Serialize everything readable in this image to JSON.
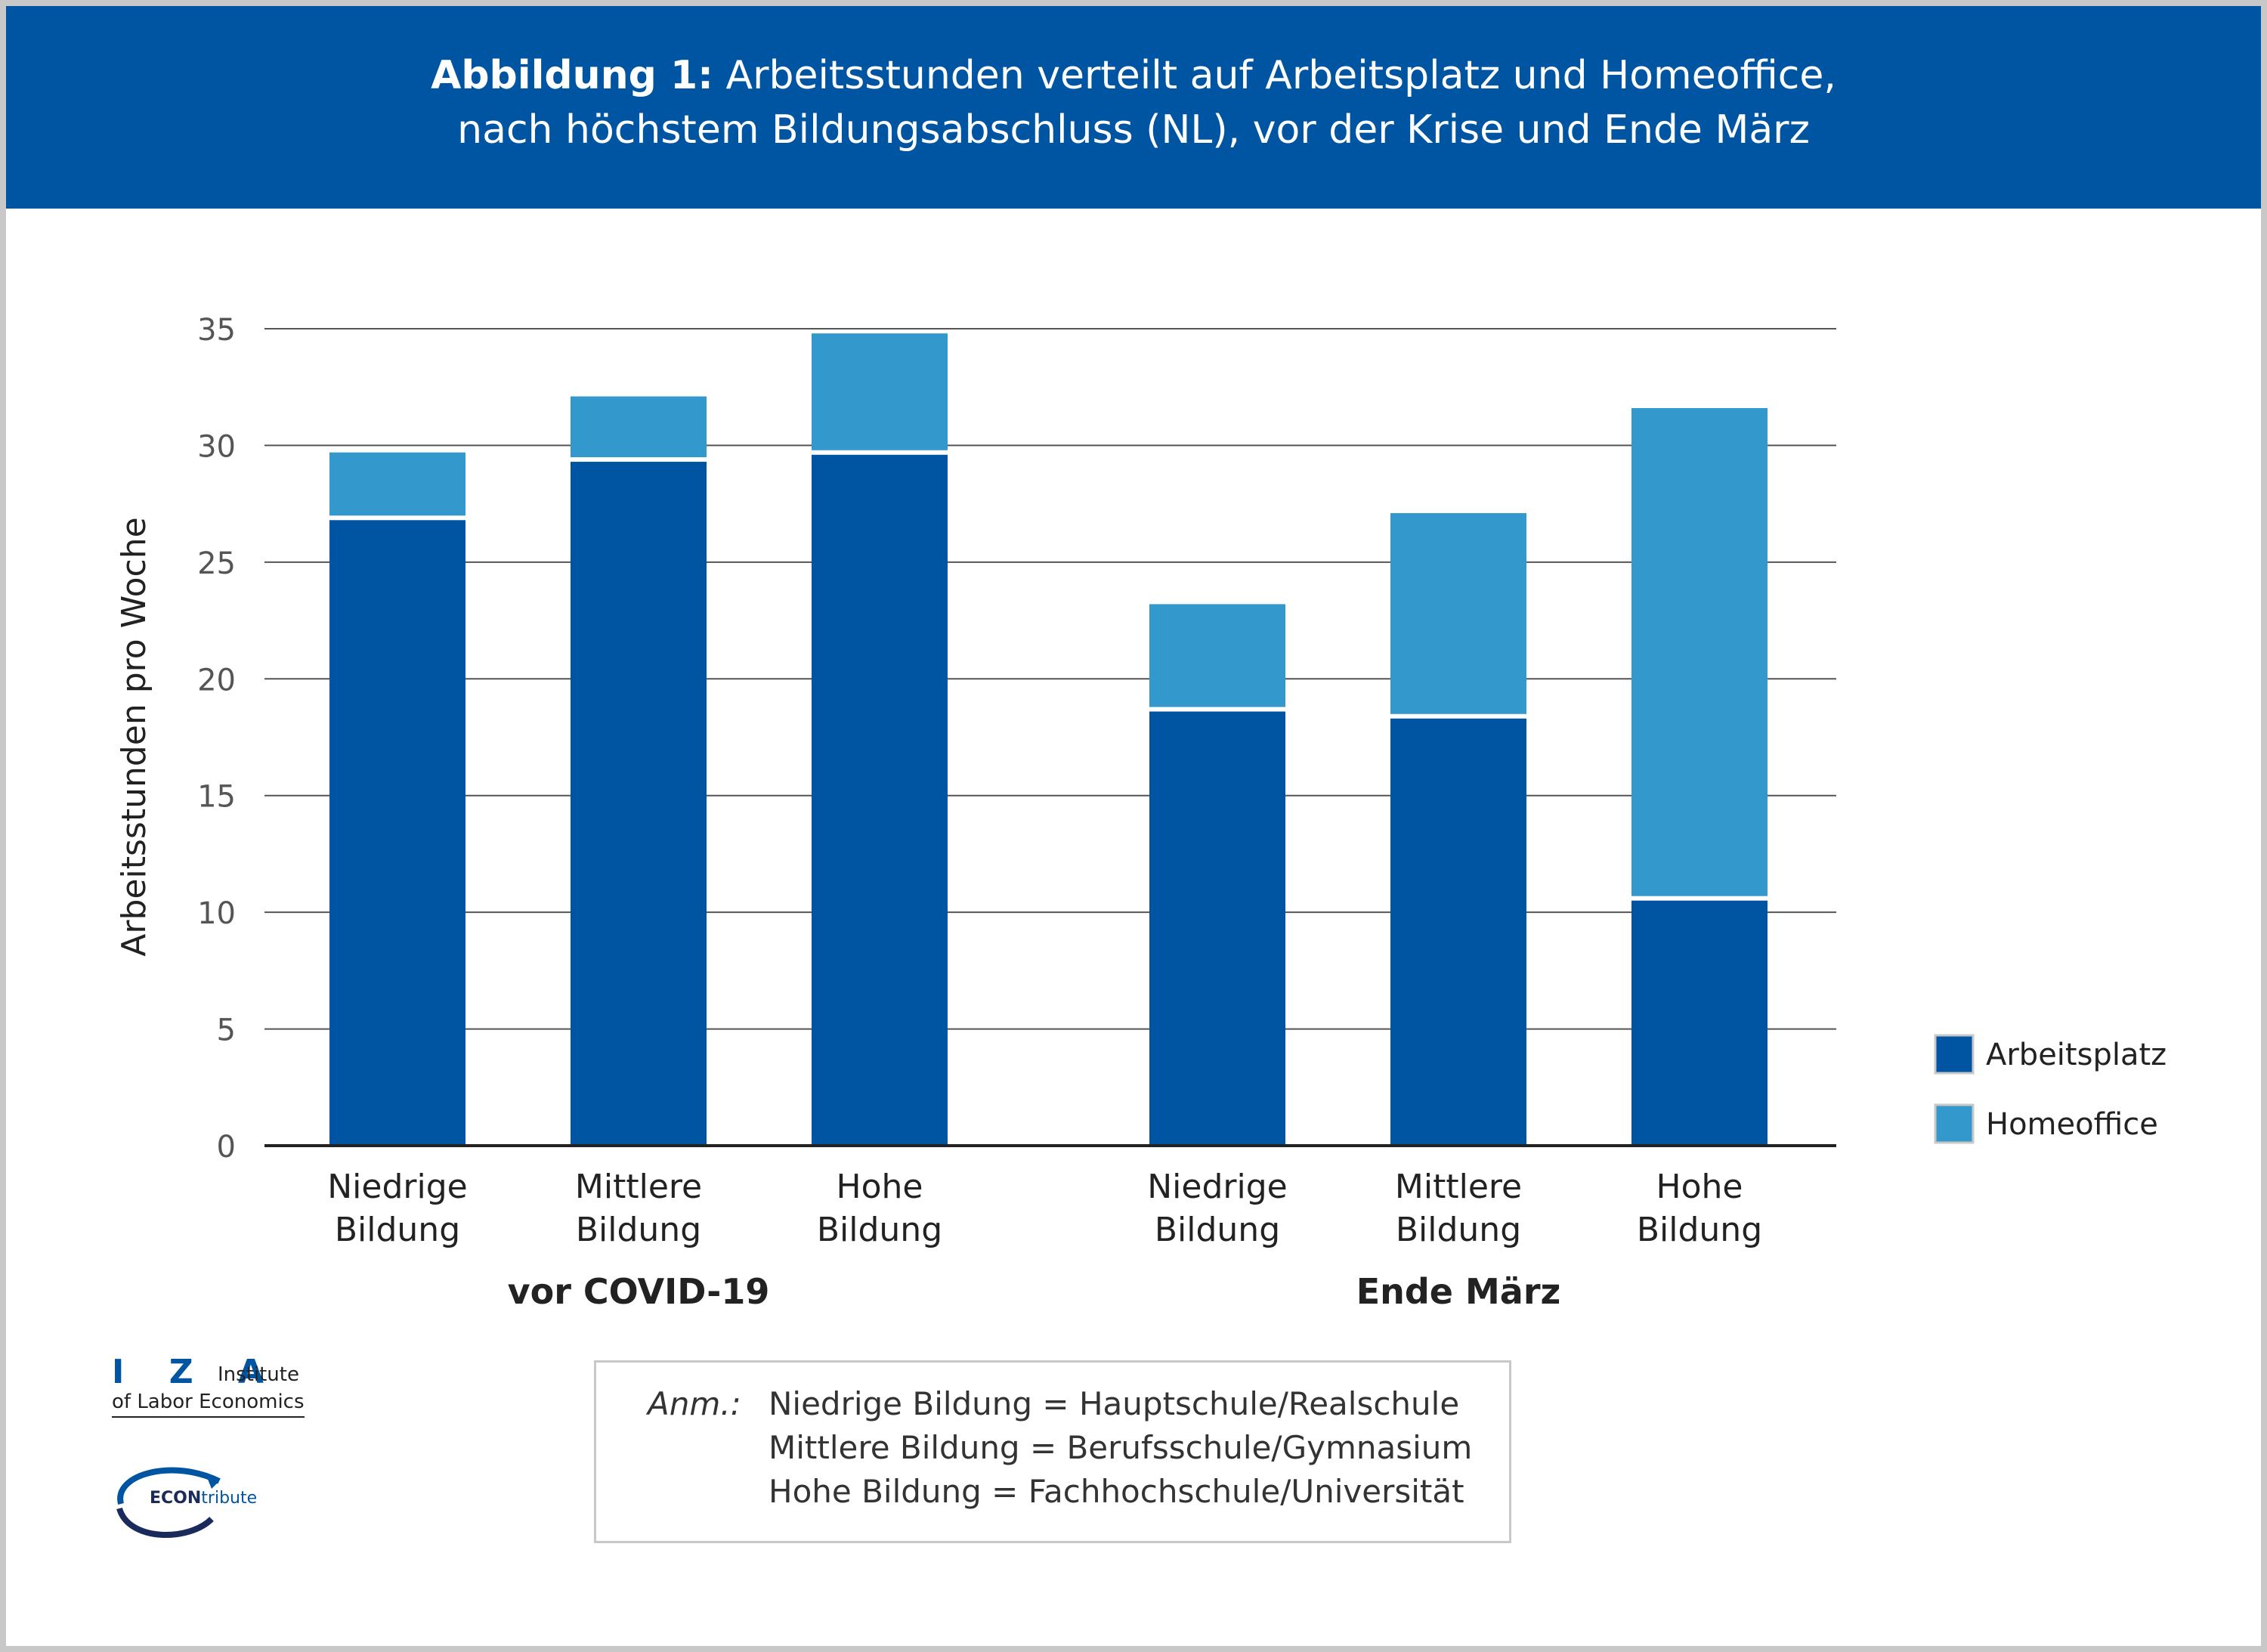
{
  "header": {
    "title_bold": "Abbildung 1:",
    "title_rest": " Arbeitsstunden verteilt auf Arbeitsplatz und Homeoffice,",
    "title_line2": "nach höchstem Bildungsabschluss (NL), vor der Krise und Ende März"
  },
  "chart_data": {
    "type": "bar",
    "stacked": true,
    "title": "Abbildung 1: Arbeitsstunden verteilt auf Arbeitsplatz und Homeoffice, nach höchstem Bildungsabschluss (NL), vor der Krise und Ende März",
    "ylabel": "Arbeitsstunden pro Woche",
    "ylim": [
      0,
      35
    ],
    "yticks": [
      0,
      5,
      10,
      15,
      20,
      25,
      30,
      35
    ],
    "grid": true,
    "legend_position": "right",
    "groups": [
      {
        "label": "vor COVID-19",
        "categories": [
          "Niedrige\nBildung",
          "Mittlere\nBildung",
          "Hohe\nBildung"
        ]
      },
      {
        "label": "Ende März",
        "categories": [
          "Niedrige\nBildung",
          "Mittlere\nBildung",
          "Hohe\nBildung"
        ]
      }
    ],
    "categories": [
      "Niedrige Bildung",
      "Mittlere Bildung",
      "Hohe Bildung",
      "Niedrige Bildung",
      "Mittlere Bildung",
      "Hohe Bildung"
    ],
    "series": [
      {
        "name": "Arbeitsplatz",
        "color": "#0055a2",
        "values": [
          26.8,
          29.3,
          29.6,
          18.6,
          18.3,
          10.5
        ]
      },
      {
        "name": "Homeoffice",
        "color": "#3399cc",
        "values": [
          2.9,
          2.8,
          5.2,
          4.6,
          8.8,
          21.1
        ]
      }
    ]
  },
  "note": {
    "label": "Anm.:",
    "lines": [
      "Niedrige Bildung = Hauptschule/Realschule",
      "Mittlere Bildung = Berufsschule/Gymnasium",
      "Hohe Bildung = Fachhochschule/Universität"
    ]
  },
  "logos": {
    "iza_letters": "I Z A",
    "iza_institute": "Institute",
    "iza_labor": "of Labor Economics",
    "econ_bold": "ECON",
    "econ_rest": "tribute"
  }
}
